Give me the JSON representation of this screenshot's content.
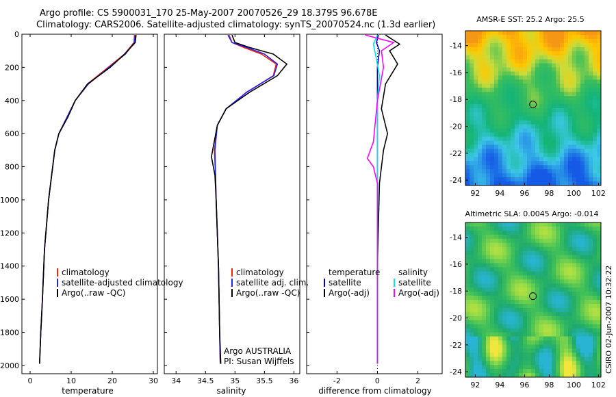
{
  "header": {
    "title_line1": "Argo profile: CS 5900031_170 25-May-2007 20070526_29 18.379S 96.678E",
    "title_line2": "Climatology: CARS2006. Satellite-adjusted climatology: synTS_20070524.nc (1.3d earlier)"
  },
  "footer": {
    "stamp": "CSIRO 02-Jun-2007 10:32:22",
    "argo_text1": "Argo AUSTRALIA",
    "argo_text2": "PI: Susan Wijffels"
  },
  "colors": {
    "climatology": "#ff2000",
    "satellite": "#2020ff",
    "argo": "#000000",
    "temp_satellite": "#0000cc",
    "sal_satellite": "#00e5ee",
    "sal_argo": "#ff00ff"
  },
  "chart_data": [
    {
      "id": "temperature_profile",
      "type": "line",
      "xlabel": "temperature",
      "ylabel": "",
      "xlim": [
        -2,
        31
      ],
      "ylim": [
        2050,
        0
      ],
      "xticks": [
        0,
        10,
        20,
        30
      ],
      "yticks": [
        0,
        200,
        400,
        600,
        800,
        1000,
        1200,
        1400,
        1600,
        1800,
        2000
      ],
      "legend": [
        "climatology",
        "satellite-adjusted climatology",
        "Argo(..raw -QC)"
      ],
      "series": [
        {
          "name": "climatology",
          "x": [
            25.4,
            25.3,
            23,
            19,
            14,
            11,
            9,
            7,
            6,
            5.5,
            4.5,
            3.5,
            3,
            2.6,
            2.3
          ],
          "y": [
            5,
            50,
            120,
            200,
            300,
            400,
            500,
            600,
            700,
            800,
            1000,
            1300,
            1600,
            1800,
            1990
          ]
        },
        {
          "name": "satellite-adjusted climatology",
          "x": [
            25.6,
            25.4,
            23.2,
            19.2,
            14.2,
            11,
            9,
            7,
            6,
            5.5,
            4.5,
            3.5,
            3,
            2.6,
            2.3
          ],
          "y": [
            5,
            50,
            120,
            200,
            300,
            400,
            500,
            600,
            700,
            800,
            1000,
            1300,
            1600,
            1800,
            1990
          ]
        },
        {
          "name": "Argo(..raw -QC)",
          "x": [
            25.8,
            25.6,
            23,
            19.5,
            14,
            11,
            9.2,
            7,
            6,
            5.5,
            4.5,
            3.5,
            3,
            2.6,
            2.3
          ],
          "y": [
            5,
            50,
            120,
            200,
            300,
            400,
            500,
            600,
            700,
            800,
            1000,
            1300,
            1600,
            1800,
            1990
          ]
        }
      ]
    },
    {
      "id": "salinity_profile",
      "type": "line",
      "xlabel": "salinity",
      "xlim": [
        33.8,
        36.1
      ],
      "ylim": [
        2050,
        0
      ],
      "xticks": [
        34,
        34.5,
        35,
        35.5,
        36
      ],
      "legend": [
        "climatology",
        "satellite adj. clim.",
        "Argo(..raw -QC)"
      ],
      "series": [
        {
          "name": "climatology",
          "x": [
            34.9,
            34.95,
            35.15,
            35.45,
            35.7,
            35.65,
            35.2,
            34.85,
            34.7,
            34.65,
            34.67,
            34.68,
            34.7,
            34.72,
            34.73,
            34.74,
            34.75
          ],
          "y": [
            5,
            50,
            80,
            120,
            180,
            250,
            350,
            450,
            550,
            700,
            850,
            1000,
            1200,
            1400,
            1600,
            1800,
            1990
          ]
        },
        {
          "name": "satellite adj. clim.",
          "x": [
            34.88,
            34.95,
            35.2,
            35.5,
            35.72,
            35.66,
            35.2,
            34.85,
            34.7,
            34.66,
            34.67,
            34.68,
            34.7,
            34.72,
            34.73,
            34.74,
            34.75
          ],
          "y": [
            5,
            50,
            80,
            120,
            180,
            250,
            350,
            450,
            550,
            700,
            850,
            1000,
            1200,
            1400,
            1600,
            1800,
            1990
          ]
        },
        {
          "name": "Argo(..raw -QC)",
          "x": [
            34.95,
            35.0,
            35.25,
            35.65,
            35.88,
            35.72,
            35.25,
            34.85,
            34.7,
            34.6,
            34.66,
            34.68,
            34.7,
            34.72,
            34.73,
            34.74,
            34.76
          ],
          "y": [
            5,
            50,
            80,
            120,
            180,
            250,
            350,
            450,
            550,
            740,
            850,
            1000,
            1200,
            1400,
            1600,
            1800,
            1990
          ]
        }
      ]
    },
    {
      "id": "difference_profile",
      "type": "line",
      "xlabel": "difference from climatology",
      "xlim": [
        -3.5,
        3.2
      ],
      "ylim": [
        2050,
        0
      ],
      "xticks": [
        -2,
        0,
        2
      ],
      "legend_left": [
        "temperature",
        "satellite",
        "Argo(-adj)"
      ],
      "legend_right": [
        "salinity",
        "satellite",
        "Argo(-adj)"
      ],
      "series": [
        {
          "name": "temperature satellite",
          "x": [
            0.05,
            -0.05,
            0.1,
            0,
            0,
            0,
            0,
            0,
            0,
            0,
            0
          ],
          "y": [
            5,
            50,
            100,
            200,
            400,
            600,
            800,
            1000,
            1400,
            1800,
            1990
          ]
        },
        {
          "name": "temperature Argo(-adj)",
          "x": [
            0.4,
            1.1,
            0.6,
            1.0,
            0.4,
            0.2,
            0.5,
            0.3,
            0.1,
            0.0,
            0.0
          ],
          "y": [
            5,
            60,
            100,
            180,
            300,
            450,
            600,
            700,
            900,
            1400,
            1990
          ]
        },
        {
          "name": "salinity satellite",
          "x": [
            0.0,
            -0.2,
            -0.1,
            0.1,
            0.0,
            0.0,
            0.0,
            0.0,
            0.0,
            0.0
          ],
          "y": [
            5,
            60,
            120,
            250,
            400,
            600,
            800,
            1200,
            1600,
            1990
          ]
        },
        {
          "name": "salinity Argo(-adj)",
          "x": [
            -0.6,
            0.8,
            0.2,
            0.3,
            0.0,
            -0.2,
            -0.5,
            -0.2,
            0.0,
            0.0,
            0.0
          ],
          "y": [
            5,
            50,
            100,
            200,
            400,
            650,
            750,
            800,
            900,
            1400,
            1990
          ]
        }
      ]
    },
    {
      "id": "sst_map",
      "type": "heatmap",
      "title": "AMSR-E SST: 25.2 Argo: 25.5",
      "xlim": [
        91.2,
        102.2
      ],
      "ylim": [
        -24.4,
        -12.9
      ],
      "xticks": [
        92,
        94,
        96,
        98,
        100,
        102
      ],
      "yticks": [
        -14,
        -16,
        -18,
        -20,
        -22,
        -24
      ],
      "marker": {
        "lon": 96.678,
        "lat": -18.379
      }
    },
    {
      "id": "sla_map",
      "type": "heatmap",
      "title": "Altimetric SLA: 0.0045 Argo: -0.014",
      "xlim": [
        91.2,
        102.2
      ],
      "ylim": [
        -24.4,
        -12.9
      ],
      "xticks": [
        92,
        94,
        96,
        98,
        100,
        102
      ],
      "yticks": [
        -14,
        -16,
        -18,
        -20,
        -22,
        -24
      ],
      "marker": {
        "lon": 96.678,
        "lat": -18.379
      }
    }
  ]
}
